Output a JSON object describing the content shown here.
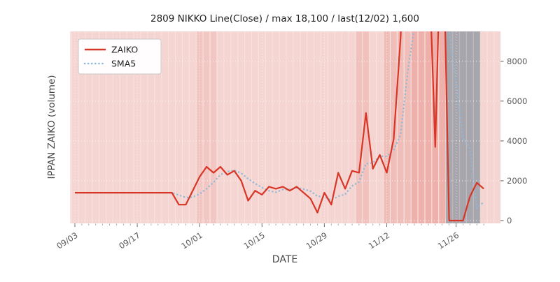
{
  "title": "2809 NIKKO Line(Close) / max 18,100 / last(12/02) 1,600",
  "axes": {
    "xlabel": "DATE",
    "ylabel": "IPPAN ZAIKO (volume)"
  },
  "legend": {
    "items": [
      {
        "label": "ZAIKO"
      },
      {
        "label": "SMA5"
      }
    ]
  },
  "colors": {
    "zaiko": "#d93526",
    "sma5": "#8fb9d8",
    "bg_pink": "#f8e1de",
    "stripe": "#de6e62",
    "gray_band": "#8a929c",
    "grid": "#ffffff"
  },
  "chart_data": {
    "type": "line",
    "title": "2809 NIKKO Line(Close) / max 18,100 / last(12/02) 1,600",
    "xlabel": "DATE",
    "ylabel": "IPPAN ZAIKO (volume)",
    "legend_position": "upper left",
    "grid": true,
    "x_tick_labels": [
      "09/03",
      "09/17",
      "10/01",
      "10/15",
      "10/29",
      "11/12",
      "11/26"
    ],
    "x_tick_indices": [
      0,
      9,
      18,
      27,
      36,
      45,
      55
    ],
    "y_ticks": [
      0,
      2000,
      4000,
      6000,
      8000
    ],
    "ylim": [
      -140,
      9500
    ],
    "max_value": 18100,
    "last_date": "12/02",
    "last_value": 1600,
    "dates": [
      "09/03",
      "09/04",
      "09/05",
      "09/06",
      "09/09",
      "09/10",
      "09/11",
      "09/12",
      "09/13",
      "09/17",
      "09/18",
      "09/19",
      "09/20",
      "09/24",
      "09/25",
      "09/26",
      "09/27",
      "09/30",
      "10/01",
      "10/02",
      "10/03",
      "10/04",
      "10/07",
      "10/08",
      "10/09",
      "10/10",
      "10/11",
      "10/15",
      "10/16",
      "10/17",
      "10/18",
      "10/21",
      "10/23",
      "10/24",
      "10/25",
      "10/28",
      "10/29",
      "10/30",
      "10/31",
      "11/01",
      "11/05",
      "11/06",
      "11/07",
      "11/08",
      "11/11",
      "11/12",
      "11/13",
      "11/14",
      "11/15",
      "11/18",
      "11/19",
      "11/20",
      "11/21",
      "11/22",
      "11/25",
      "11/26",
      "11/27",
      "11/28",
      "11/29",
      "12/02"
    ],
    "series": [
      {
        "name": "ZAIKO",
        "style": "solid",
        "color": "#d93526",
        "values": [
          1400,
          1400,
          1400,
          1400,
          1400,
          1400,
          1400,
          1400,
          1400,
          1400,
          1400,
          1400,
          1400,
          1400,
          1400,
          800,
          800,
          1500,
          2200,
          2700,
          2400,
          2700,
          2300,
          2500,
          2000,
          1000,
          1500,
          1300,
          1700,
          1600,
          1700,
          1500,
          1700,
          1400,
          1100,
          400,
          1400,
          800,
          2400,
          1600,
          2500,
          2400,
          5400,
          2600,
          3300,
          2400,
          4100,
          9200,
          18100,
          15000,
          13000,
          14000,
          3700,
          17000,
          0,
          0,
          0,
          1200,
          1900,
          1600
        ]
      },
      {
        "name": "SMA5",
        "style": "dotted",
        "color": "#8fb9d8",
        "derivation": "5-period moving average of ZAIKO"
      }
    ],
    "background_bands": [
      {
        "type": "pink",
        "start_index": 0,
        "end_index": 60,
        "alpha": 0.1
      },
      {
        "type": "pink",
        "start_index": 18,
        "end_index": 21,
        "alpha": 0.12
      },
      {
        "type": "pink",
        "start_index": 41,
        "end_index": 43,
        "alpha": 0.16
      },
      {
        "type": "pink",
        "start_index": 45,
        "end_index": 49,
        "alpha": 0.2
      },
      {
        "type": "pink",
        "start_index": 49,
        "end_index": 54,
        "alpha": 0.32
      },
      {
        "type": "gray",
        "start_index": 54,
        "end_index": 59
      }
    ]
  }
}
